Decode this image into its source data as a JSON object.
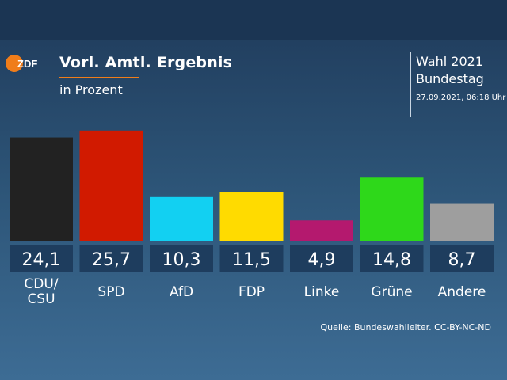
{
  "header": {
    "logo_text": "ZDF",
    "title": "Vorl. Amtl. Ergebnis",
    "subtitle": "in Prozent",
    "info_title": "Wahl 2021",
    "info_sub": "Bundestag",
    "info_date": "27.09.2021, 06:18 Uhr"
  },
  "source": "Quelle: Bundeswahlleiter. CC-BY-NC-ND",
  "colors": {
    "accent": "#f07d1a",
    "value_box": "#1e3d5e"
  },
  "chart_data": {
    "type": "bar",
    "categories": [
      "CDU/\nCSU",
      "SPD",
      "AfD",
      "FDP",
      "Linke",
      "Grüne",
      "Andere"
    ],
    "values": [
      24.1,
      25.7,
      10.3,
      11.5,
      4.9,
      14.8,
      8.7
    ],
    "value_labels": [
      "24,1",
      "25,7",
      "10,3",
      "11,5",
      "4,9",
      "14,8",
      "8,7"
    ],
    "colors": [
      "#222222",
      "#d11a00",
      "#12d0f2",
      "#ffdb00",
      "#b4196e",
      "#2ed81a",
      "#9e9e9e"
    ],
    "ylim": [
      0,
      27.5
    ],
    "grid": false
  }
}
